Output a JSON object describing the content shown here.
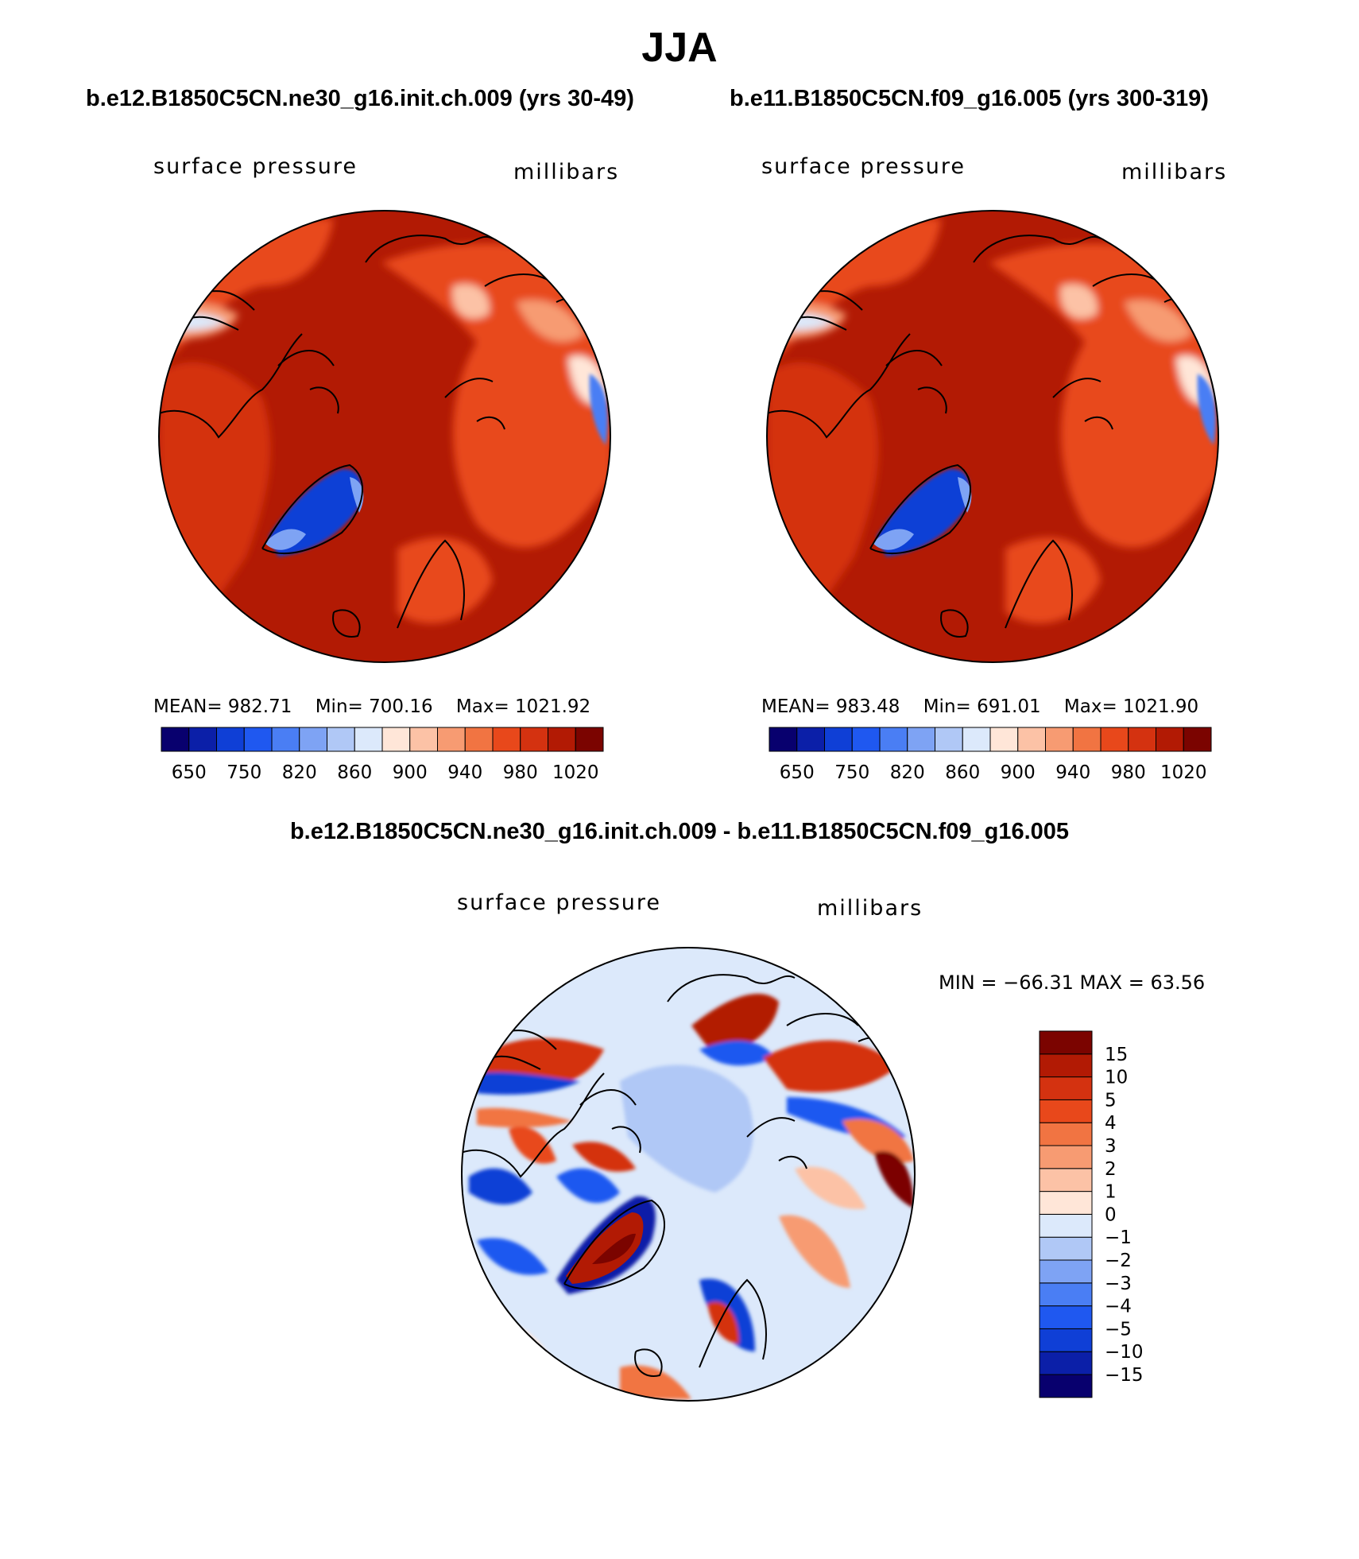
{
  "title": "JJA",
  "diff_title": "b.e12.B1850C5CN.ne30_g16.init.ch.009 - b.e11.B1850C5CN.f09_g16.005",
  "colors": {
    "abs_scale": [
      "#08006e",
      "#0b1fa8",
      "#0f3fd6",
      "#1f58f0",
      "#4a7ef4",
      "#7ea3f4",
      "#b0c8f6",
      "#dce9fb",
      "#ffe6d8",
      "#fcc2a6",
      "#f79b72",
      "#f17442",
      "#e8481b",
      "#d43210",
      "#b21a04",
      "#7b0400"
    ],
    "diff_scale": [
      "#08006e",
      "#0b1fa8",
      "#0f3fd6",
      "#1f58f0",
      "#4a7ef4",
      "#7ea3f4",
      "#b0c8f6",
      "#dce9fb",
      "#ffe6d8",
      "#fcc2a6",
      "#f79b72",
      "#f17442",
      "#e8481b",
      "#d43210",
      "#b21a04",
      "#7b0400"
    ]
  },
  "chart_data": [
    {
      "type": "heatmap",
      "projection": "north polar stereographic",
      "title": "b.e12.B1850C5CN.ne30_g16.init.ch.009 (yrs 30-49)",
      "left_label": "surface pressure",
      "right_label": "millibars",
      "stats": {
        "mean_label": "MEAN=",
        "mean": "982.71",
        "min_label": "Min=",
        "min": "700.16",
        "max_label": "Max=",
        "max": "1021.92"
      },
      "colorbar": {
        "orientation": "horizontal",
        "tick_labels": [
          "650",
          "750",
          "820",
          "860",
          "900",
          "940",
          "980",
          "1020"
        ]
      },
      "field": "mostly 990-1020 mb over ocean and lowlands, 940-980 mb over elevated continents, 700-820 mb over the Greenland ice sheet"
    },
    {
      "type": "heatmap",
      "projection": "north polar stereographic",
      "title": "b.e11.B1850C5CN.f09_g16.005 (yrs 300-319)",
      "left_label": "surface pressure",
      "right_label": "millibars",
      "stats": {
        "mean_label": "MEAN=",
        "mean": "983.48",
        "min_label": "Min=",
        "min": "691.01",
        "max_label": "Max=",
        "max": "1021.90"
      },
      "colorbar": {
        "orientation": "horizontal",
        "tick_labels": [
          "650",
          "750",
          "820",
          "860",
          "900",
          "940",
          "980",
          "1020"
        ]
      },
      "field": "mostly 990-1020 mb over ocean and lowlands, 940-980 mb over elevated continents, 700-820 mb over the Greenland ice sheet"
    },
    {
      "type": "heatmap",
      "projection": "north polar stereographic",
      "title": "",
      "left_label": "surface pressure",
      "right_label": "millibars",
      "stats": {
        "text": "MIN = −66.31 MAX =  63.56"
      },
      "colorbar": {
        "orientation": "vertical",
        "tick_labels": [
          "15",
          "10",
          "5",
          "4",
          "3",
          "2",
          "1",
          "0",
          "−1",
          "−2",
          "−3",
          "−4",
          "−5",
          "−10",
          "−15"
        ]
      },
      "field": "difference mostly -1 to 0 mb over ocean; large positive anomalies (10-15) over Greenland interior; strong mixed positive/negative anomalies along mountainous coastlines"
    }
  ]
}
